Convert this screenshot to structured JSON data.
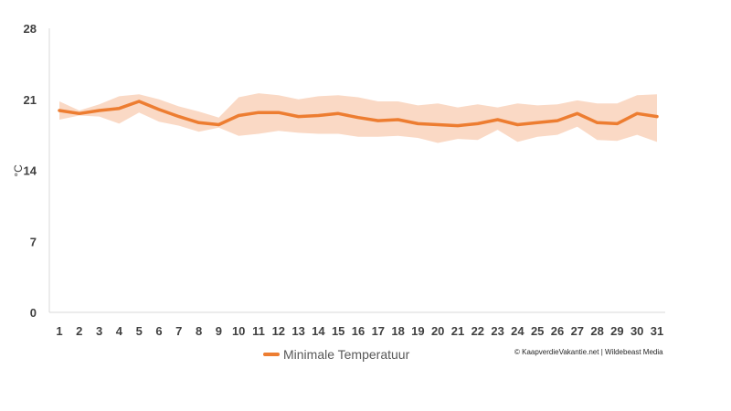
{
  "chart_data": {
    "type": "line",
    "x": [
      "1",
      "2",
      "3",
      "4",
      "5",
      "6",
      "7",
      "8",
      "9",
      "10",
      "11",
      "12",
      "13",
      "14",
      "15",
      "16",
      "17",
      "18",
      "19",
      "20",
      "21",
      "22",
      "23",
      "24",
      "25",
      "26",
      "27",
      "28",
      "29",
      "30",
      "31"
    ],
    "series": [
      {
        "name": "Minimale Temperatuur",
        "values": [
          19.9,
          19.6,
          19.9,
          20.1,
          20.8,
          20.0,
          19.3,
          18.7,
          18.5,
          19.4,
          19.7,
          19.7,
          19.3,
          19.4,
          19.6,
          19.2,
          18.9,
          19.0,
          18.6,
          18.5,
          18.4,
          18.6,
          19.0,
          18.5,
          18.7,
          18.9,
          19.6,
          18.7,
          18.6,
          19.6,
          19.3
        ],
        "band_upper": [
          20.8,
          19.9,
          20.5,
          21.3,
          21.5,
          21.0,
          20.3,
          19.8,
          19.2,
          21.2,
          21.6,
          21.4,
          21.0,
          21.3,
          21.4,
          21.2,
          20.8,
          20.8,
          20.4,
          20.6,
          20.2,
          20.5,
          20.2,
          20.6,
          20.4,
          20.5,
          20.9,
          20.6,
          20.6,
          21.4,
          21.5
        ],
        "band_lower": [
          19.0,
          19.4,
          19.3,
          18.6,
          19.7,
          18.8,
          18.4,
          17.8,
          18.2,
          17.4,
          17.6,
          17.9,
          17.7,
          17.6,
          17.6,
          17.3,
          17.3,
          17.4,
          17.2,
          16.7,
          17.1,
          17.0,
          18.0,
          16.8,
          17.3,
          17.5,
          18.3,
          17.0,
          16.9,
          17.5,
          16.8
        ]
      }
    ],
    "ylabel": "°C",
    "yticks": [
      0,
      7,
      14,
      21,
      28
    ],
    "ylim": [
      0,
      28
    ],
    "grid": false,
    "legend_position": "bottom",
    "colors": {
      "line": "#ED7D31",
      "band": "#FAD9C5",
      "axis": "#D9D9D9"
    }
  },
  "credit": "© KaapverdieVakantie.net | Wildebeast Media"
}
